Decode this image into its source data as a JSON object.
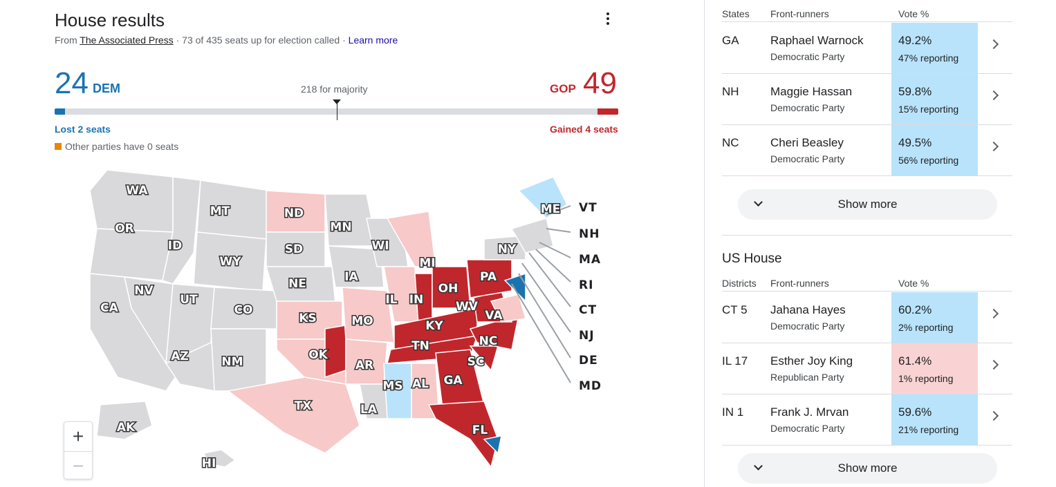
{
  "house": {
    "title": "House results",
    "source_prefix": "From ",
    "source_name": "The Associated Press",
    "called_text": " · 73 of 435 seats up for election called · ",
    "learn_more": "Learn more",
    "dem_seats": "24",
    "dem_label": "DEM",
    "gop_label": "GOP",
    "gop_seats": "49",
    "majority_text": "218 for majority",
    "dem_change": "Lost 2 seats",
    "gop_change": "Gained 4 seats",
    "other_text": "Other parties have 0 seats",
    "dem_progress": 24,
    "gop_progress": 49,
    "majority_value": 218,
    "total_seats": 435
  },
  "map": {
    "state_labels": [
      "WA",
      "OR",
      "CA",
      "NV",
      "ID",
      "MT",
      "WY",
      "UT",
      "AZ",
      "NM",
      "CO",
      "ND",
      "SD",
      "NE",
      "KS",
      "OK",
      "TX",
      "MN",
      "IA",
      "MO",
      "AR",
      "LA",
      "WI",
      "IL",
      "MI",
      "IN",
      "OH",
      "KY",
      "TN",
      "MS",
      "AL",
      "GA",
      "FL",
      "SC",
      "NC",
      "VA",
      "WV",
      "PA",
      "NY",
      "ME",
      "AK",
      "HI"
    ],
    "northeast_labels": [
      "VT",
      "NH",
      "MA",
      "RI",
      "CT",
      "NJ",
      "DE",
      "MD"
    ],
    "colors": {
      "dem_strong": "#1a73b0",
      "dem_lean": "#b8e3fb",
      "gop_strong": "#c0272d",
      "gop_lean": "#f7c9c9",
      "uncalled": "#d9d9db"
    }
  },
  "zoom": {
    "in": "+",
    "out": "−"
  },
  "senate": {
    "headers": {
      "col1": "States",
      "col2": "Front-runners",
      "col3": "Vote %"
    },
    "rows": [
      {
        "code": "GA",
        "name": "Raphael Warnock",
        "party": "Democratic Party",
        "pct": "49.2%",
        "reporting": "47% reporting",
        "color": "dem"
      },
      {
        "code": "NH",
        "name": "Maggie Hassan",
        "party": "Democratic Party",
        "pct": "59.8%",
        "reporting": "15% reporting",
        "color": "dem"
      },
      {
        "code": "NC",
        "name": "Cheri Beasley",
        "party": "Democratic Party",
        "pct": "49.5%",
        "reporting": "56% reporting",
        "color": "dem"
      }
    ],
    "show_more": "Show more"
  },
  "us_house": {
    "title": "US House",
    "headers": {
      "col1": "Districts",
      "col2": "Front-runners",
      "col3": "Vote %"
    },
    "rows": [
      {
        "code": "CT 5",
        "name": "Jahana Hayes",
        "party": "Democratic Party",
        "pct": "60.2%",
        "reporting": "2% reporting",
        "color": "dem"
      },
      {
        "code": "IL 17",
        "name": "Esther Joy King",
        "party": "Republican Party",
        "pct": "61.4%",
        "reporting": "1% reporting",
        "color": "gop"
      },
      {
        "code": "IN 1",
        "name": "Frank J. Mrvan",
        "party": "Democratic Party",
        "pct": "59.6%",
        "reporting": "21% reporting",
        "color": "dem"
      }
    ],
    "show_more": "Show more"
  }
}
